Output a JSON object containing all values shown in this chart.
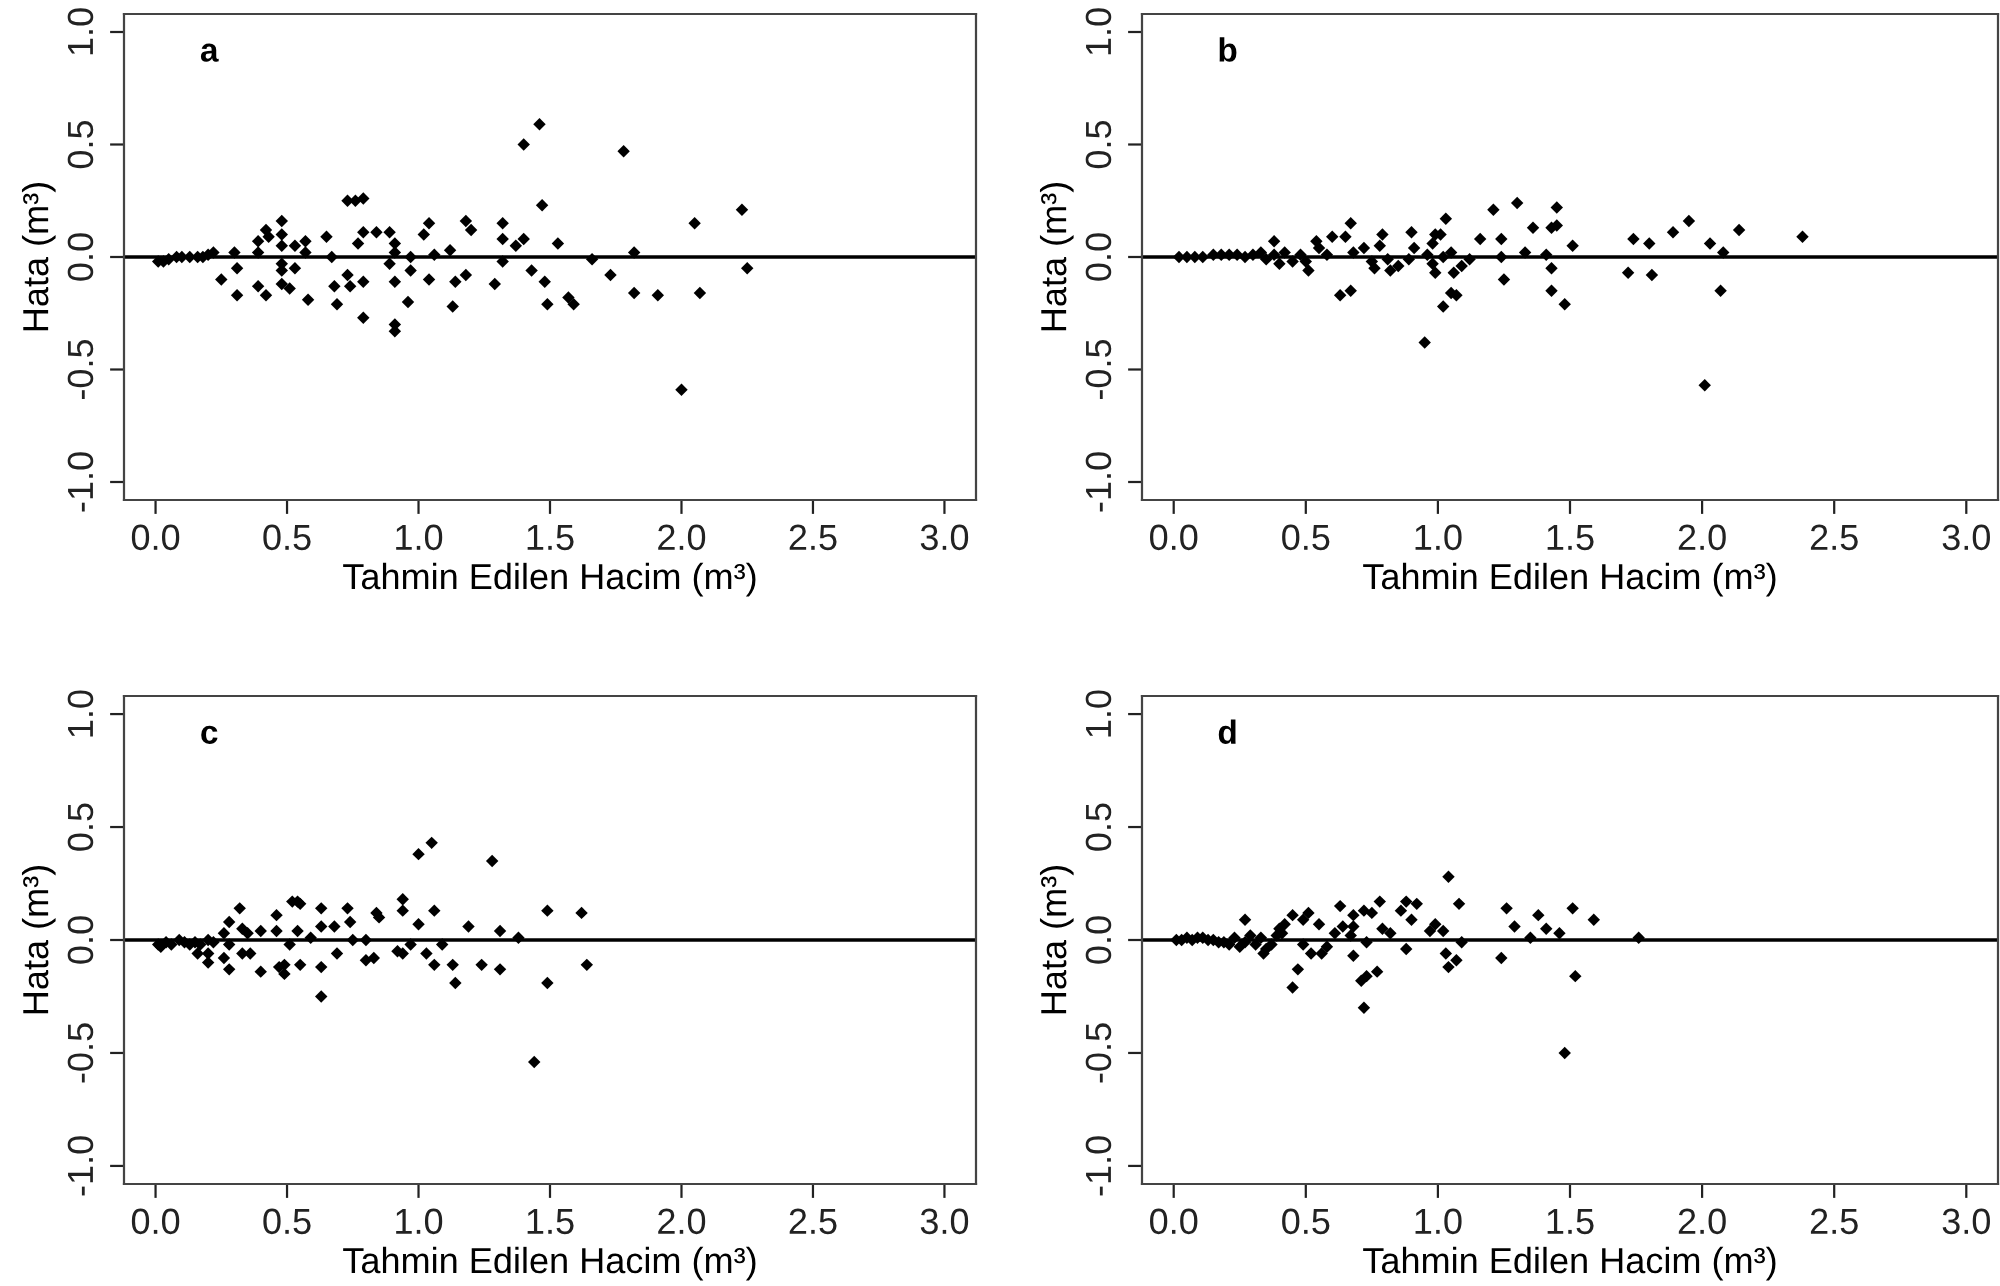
{
  "chart_data": [
    {
      "type": "scatter",
      "title": "a",
      "xlabel": "Tahmin Edilen Hacim (m³)",
      "ylabel": "Hata (m³)",
      "marker": "diamond",
      "xlim": [
        -0.12,
        3.12
      ],
      "ylim": [
        -1.08,
        1.08
      ],
      "xticks": [
        {
          "value": 0,
          "label": "0.0"
        },
        {
          "value": 0.5,
          "label": "0.5"
        },
        {
          "value": 1,
          "label": "1.0"
        },
        {
          "value": 1.5,
          "label": "1.5"
        },
        {
          "value": 2,
          "label": "2.0"
        },
        {
          "value": 2.5,
          "label": "2.5"
        },
        {
          "value": 3,
          "label": "3.0"
        }
      ],
      "yticks": [
        {
          "value": -1,
          "label": "-1.0"
        },
        {
          "value": -0.5,
          "label": "-0.5"
        },
        {
          "value": 0,
          "label": "0.0"
        },
        {
          "value": 0.5,
          "label": "0.5"
        },
        {
          "value": 1,
          "label": "1.0"
        }
      ],
      "ref_lines": [
        {
          "axis": "y",
          "value": 0,
          "color": "#000000"
        }
      ],
      "series": [
        {
          "color": "#000000",
          "x": [
            0.01,
            0.03,
            0.05,
            0.08,
            0.1,
            0.13,
            0.16,
            0.18,
            0.2,
            0.22,
            0.25,
            0.31,
            0.31,
            0.3,
            0.39,
            0.39,
            0.39,
            0.42,
            0.43,
            0.42,
            0.48,
            0.48,
            0.48,
            0.48,
            0.48,
            0.48,
            0.53,
            0.53,
            0.51,
            0.57,
            0.57,
            0.58,
            0.65,
            0.67,
            0.68,
            0.69,
            0.73,
            0.76,
            0.79,
            0.73,
            0.74,
            0.77,
            0.79,
            0.79,
            0.79,
            0.84,
            0.89,
            0.89,
            0.91,
            0.91,
            0.91,
            0.91,
            0.91,
            0.96,
            0.97,
            0.97,
            1.02,
            1.04,
            1.04,
            1.06,
            1.12,
            1.13,
            1.14,
            1.18,
            1.18,
            1.2,
            1.29,
            1.32,
            1.32,
            1.32,
            1.37,
            1.4,
            1.4,
            1.43,
            1.46,
            1.47,
            1.48,
            1.49,
            1.53,
            1.57,
            1.59,
            1.66,
            1.73,
            1.78,
            1.82,
            1.82,
            1.91,
            2.0,
            2.05,
            2.07,
            2.23,
            2.25
          ],
          "values": [
            -0.02,
            -0.02,
            -0.01,
            0,
            0,
            0,
            0,
            0,
            0.01,
            0.02,
            -0.1,
            -0.17,
            -0.05,
            0.02,
            0.07,
            0.02,
            -0.13,
            0.12,
            0.09,
            -0.17,
            0.16,
            0.1,
            0.05,
            -0.03,
            -0.06,
            -0.12,
            0.05,
            -0.05,
            -0.14,
            0.07,
            0.02,
            -0.19,
            0.09,
            0,
            -0.13,
            -0.21,
            0.25,
            0.25,
            0.26,
            -0.08,
            -0.13,
            0.06,
            0.11,
            -0.11,
            -0.27,
            0.11,
            0.11,
            -0.03,
            0.06,
            0.02,
            -0.11,
            -0.3,
            -0.33,
            -0.2,
            0,
            -0.06,
            0.1,
            0.15,
            -0.1,
            0.01,
            0.03,
            -0.22,
            -0.11,
            0.16,
            -0.08,
            0.12,
            -0.12,
            0.15,
            0.08,
            -0.02,
            0.05,
            0.08,
            0.5,
            -0.06,
            0.59,
            0.23,
            -0.11,
            -0.21,
            0.06,
            -0.18,
            -0.21,
            -0.01,
            -0.08,
            0.47,
            0.02,
            -0.16,
            -0.17,
            -0.59,
            0.15,
            -0.16,
            0.21,
            -0.05
          ]
        }
      ]
    },
    {
      "type": "scatter",
      "title": "b",
      "xlabel": "Tahmin Edilen Hacim (m³)",
      "ylabel": "Hata (m³)",
      "marker": "diamond",
      "xlim": [
        -0.12,
        3.12
      ],
      "ylim": [
        -1.08,
        1.08
      ],
      "xticks": [
        {
          "value": 0,
          "label": "0.0"
        },
        {
          "value": 0.5,
          "label": "0.5"
        },
        {
          "value": 1,
          "label": "1.0"
        },
        {
          "value": 1.5,
          "label": "1.5"
        },
        {
          "value": 2,
          "label": "2.0"
        },
        {
          "value": 2.5,
          "label": "2.5"
        },
        {
          "value": 3,
          "label": "3.0"
        }
      ],
      "yticks": [
        {
          "value": -1,
          "label": "-1.0"
        },
        {
          "value": -0.5,
          "label": "-0.5"
        },
        {
          "value": 0,
          "label": "0.0"
        },
        {
          "value": 0.5,
          "label": "0.5"
        },
        {
          "value": 1,
          "label": "1.0"
        }
      ],
      "ref_lines": [
        {
          "axis": "y",
          "value": 0,
          "color": "#000000"
        }
      ],
      "series": [
        {
          "color": "#000000",
          "x": [
            0.02,
            0.05,
            0.08,
            0.11,
            0.15,
            0.18,
            0.21,
            0.24,
            0.27,
            0.3,
            0.33,
            0.35,
            0.38,
            0.4,
            0.42,
            0.45,
            0.48,
            0.5,
            0.38,
            0.51,
            0.54,
            0.55,
            0.58,
            0.6,
            0.63,
            0.65,
            0.67,
            0.67,
            0.68,
            0.72,
            0.75,
            0.76,
            0.79,
            0.78,
            0.81,
            0.82,
            0.85,
            0.89,
            0.9,
            0.91,
            0.95,
            0.96,
            0.98,
            0.99,
            1.01,
            0.98,
            0.99,
            1.02,
            1.02,
            1.03,
            1.05,
            1.07,
            1.06,
            1.05,
            1.09,
            1.12,
            1.16,
            1.21,
            1.24,
            1.24,
            1.25,
            1.3,
            1.33,
            1.36,
            1.41,
            1.43,
            1.43,
            1.43,
            1.45,
            1.45,
            1.48,
            1.51,
            1.72,
            1.74,
            1.8,
            1.81,
            1.89,
            1.95,
            2.01,
            2.03,
            2.07,
            2.08,
            2.14,
            2.38
          ],
          "values": [
            0,
            0,
            0,
            0,
            0.01,
            0.01,
            0.01,
            0.01,
            0,
            0.01,
            0.02,
            -0.01,
            0.01,
            -0.03,
            0.02,
            -0.02,
            0.01,
            -0.02,
            0.07,
            -0.06,
            0.07,
            0.04,
            0.01,
            0.09,
            -0.17,
            0.09,
            0.15,
            -0.15,
            0.02,
            0.04,
            -0.02,
            -0.05,
            0.1,
            0.05,
            -0.01,
            -0.06,
            -0.04,
            -0.01,
            0.11,
            0.04,
            -0.38,
            0.01,
            0.06,
            0.1,
            0.1,
            -0.03,
            -0.07,
            0,
            -0.22,
            0.17,
            -0.16,
            -0.17,
            -0.07,
            0.02,
            -0.04,
            -0.01,
            0.08,
            0.21,
            0.08,
            0,
            -0.1,
            0.24,
            0.02,
            0.13,
            0.01,
            -0.05,
            -0.15,
            0.13,
            0.14,
            0.22,
            -0.21,
            0.05,
            -0.07,
            0.08,
            0.06,
            -0.08,
            0.11,
            0.16,
            -0.57,
            0.06,
            -0.15,
            0.02,
            0.12,
            0.09
          ]
        }
      ]
    },
    {
      "type": "scatter",
      "title": "c",
      "xlabel": "Tahmin Edilen Hacim (m³)",
      "ylabel": "Hata (m³)",
      "marker": "diamond",
      "xlim": [
        -0.12,
        3.12
      ],
      "ylim": [
        -1.08,
        1.08
      ],
      "xticks": [
        {
          "value": 0,
          "label": "0.0"
        },
        {
          "value": 0.5,
          "label": "0.5"
        },
        {
          "value": 1,
          "label": "1.0"
        },
        {
          "value": 1.5,
          "label": "1.5"
        },
        {
          "value": 2,
          "label": "2.0"
        },
        {
          "value": 2.5,
          "label": "2.5"
        },
        {
          "value": 3,
          "label": "3.0"
        }
      ],
      "yticks": [
        {
          "value": -1,
          "label": "-1.0"
        },
        {
          "value": -0.5,
          "label": "-0.5"
        },
        {
          "value": 0,
          "label": "0.0"
        },
        {
          "value": 0.5,
          "label": "0.5"
        },
        {
          "value": 1,
          "label": "1.0"
        }
      ],
      "ref_lines": [
        {
          "axis": "y",
          "value": 0,
          "color": "#000000"
        }
      ],
      "series": [
        {
          "color": "#000000",
          "x": [
            0.01,
            0.02,
            0.04,
            0.06,
            0.09,
            0.11,
            0.13,
            0.15,
            0.17,
            0.2,
            0.22,
            0.16,
            0.2,
            0.2,
            0.26,
            0.26,
            0.28,
            0.28,
            0.28,
            0.32,
            0.33,
            0.33,
            0.35,
            0.36,
            0.4,
            0.4,
            0.46,
            0.46,
            0.47,
            0.49,
            0.49,
            0.51,
            0.52,
            0.54,
            0.55,
            0.54,
            0.55,
            0.59,
            0.63,
            0.63,
            0.63,
            0.63,
            0.68,
            0.69,
            0.73,
            0.74,
            0.75,
            0.8,
            0.8,
            0.83,
            0.84,
            0.85,
            0.92,
            0.94,
            0.94,
            0.94,
            0.97,
            1.0,
            1.0,
            1.03,
            1.05,
            1.06,
            1.06,
            1.09,
            1.13,
            1.14,
            1.19,
            1.24,
            1.28,
            1.31,
            1.31,
            1.38,
            1.44,
            1.49,
            1.49,
            1.62,
            1.64
          ],
          "values": [
            -0.02,
            -0.03,
            -0.01,
            -0.02,
            0,
            -0.01,
            -0.02,
            -0.01,
            -0.02,
            0,
            -0.01,
            -0.06,
            -0.06,
            -0.1,
            0.03,
            -0.08,
            -0.13,
            0.08,
            -0.02,
            0.14,
            0.05,
            -0.06,
            0.03,
            -0.06,
            -0.14,
            0.04,
            0.11,
            0.04,
            -0.12,
            -0.15,
            -0.11,
            -0.02,
            0.17,
            0.17,
            0.16,
            0.04,
            -0.11,
            0.01,
            0.14,
            0.06,
            -0.12,
            -0.25,
            0.06,
            -0.06,
            0.14,
            0.08,
            0,
            0,
            -0.09,
            -0.08,
            0.12,
            0.1,
            -0.05,
            0.18,
            0.13,
            -0.06,
            -0.02,
            0.38,
            0.07,
            -0.06,
            0.43,
            0.13,
            -0.11,
            -0.02,
            -0.11,
            -0.19,
            0.06,
            -0.11,
            0.35,
            -0.13,
            0.04,
            0.01,
            -0.54,
            0.13,
            -0.19,
            0.12,
            -0.11
          ]
        }
      ]
    },
    {
      "type": "scatter",
      "title": "d",
      "xlabel": "Tahmin Edilen Hacim (m³)",
      "ylabel": "Hata (m³)",
      "marker": "diamond",
      "xlim": [
        -0.12,
        3.12
      ],
      "ylim": [
        -1.08,
        1.08
      ],
      "xticks": [
        {
          "value": 0,
          "label": "0.0"
        },
        {
          "value": 0.5,
          "label": "0.5"
        },
        {
          "value": 1,
          "label": "1.0"
        },
        {
          "value": 1.5,
          "label": "1.5"
        },
        {
          "value": 2,
          "label": "2.0"
        },
        {
          "value": 2.5,
          "label": "2.5"
        },
        {
          "value": 3,
          "label": "3.0"
        }
      ],
      "yticks": [
        {
          "value": -1,
          "label": "-1.0"
        },
        {
          "value": -0.5,
          "label": "-0.5"
        },
        {
          "value": 0,
          "label": "0.0"
        },
        {
          "value": 0.5,
          "label": "0.5"
        },
        {
          "value": 1,
          "label": "1.0"
        }
      ],
      "ref_lines": [
        {
          "axis": "y",
          "value": 0,
          "color": "#000000"
        }
      ],
      "series": [
        {
          "color": "#000000",
          "x": [
            0.01,
            0.03,
            0.05,
            0.07,
            0.09,
            0.11,
            0.13,
            0.15,
            0.17,
            0.19,
            0.21,
            0.23,
            0.25,
            0.27,
            0.29,
            0.31,
            0.33,
            0.35,
            0.37,
            0.39,
            0.41,
            0.27,
            0.34,
            0.4,
            0.42,
            0.45,
            0.45,
            0.47,
            0.49,
            0.49,
            0.51,
            0.52,
            0.55,
            0.56,
            0.58,
            0.61,
            0.63,
            0.64,
            0.67,
            0.68,
            0.68,
            0.68,
            0.71,
            0.72,
            0.73,
            0.72,
            0.73,
            0.75,
            0.77,
            0.78,
            0.79,
            0.82,
            0.86,
            0.88,
            0.88,
            0.9,
            0.92,
            0.97,
            0.99,
            1.02,
            1.04,
            1.03,
            1.04,
            1.07,
            1.08,
            1.09,
            1.24,
            1.26,
            1.29,
            1.35,
            1.38,
            1.41,
            1.46,
            1.48,
            1.51,
            1.52,
            1.59,
            1.76
          ],
          "values": [
            0,
            0,
            0.01,
            0,
            0.01,
            0.01,
            0,
            0,
            -0.01,
            -0.01,
            -0.02,
            0.01,
            -0.03,
            -0.01,
            0.02,
            -0.02,
            0.01,
            -0.04,
            -0.02,
            0.02,
            0.03,
            0.09,
            -0.06,
            0.05,
            0.07,
            -0.21,
            0.11,
            -0.13,
            0.09,
            -0.02,
            0.12,
            -0.06,
            0.07,
            -0.06,
            -0.03,
            0.03,
            0.15,
            0.06,
            0.02,
            0.11,
            -0.07,
            0.06,
            -0.18,
            -0.3,
            -0.16,
            0.13,
            -0.01,
            0.12,
            -0.14,
            0.17,
            0.05,
            0.03,
            0.13,
            0.17,
            -0.04,
            0.09,
            0.16,
            0.04,
            0.07,
            0.04,
            0.28,
            -0.06,
            -0.12,
            -0.09,
            0.16,
            -0.01,
            -0.08,
            0.14,
            0.06,
            0.01,
            0.11,
            0.05,
            0.03,
            -0.5,
            0.14,
            -0.16,
            0.09,
            0.01
          ]
        }
      ]
    }
  ]
}
